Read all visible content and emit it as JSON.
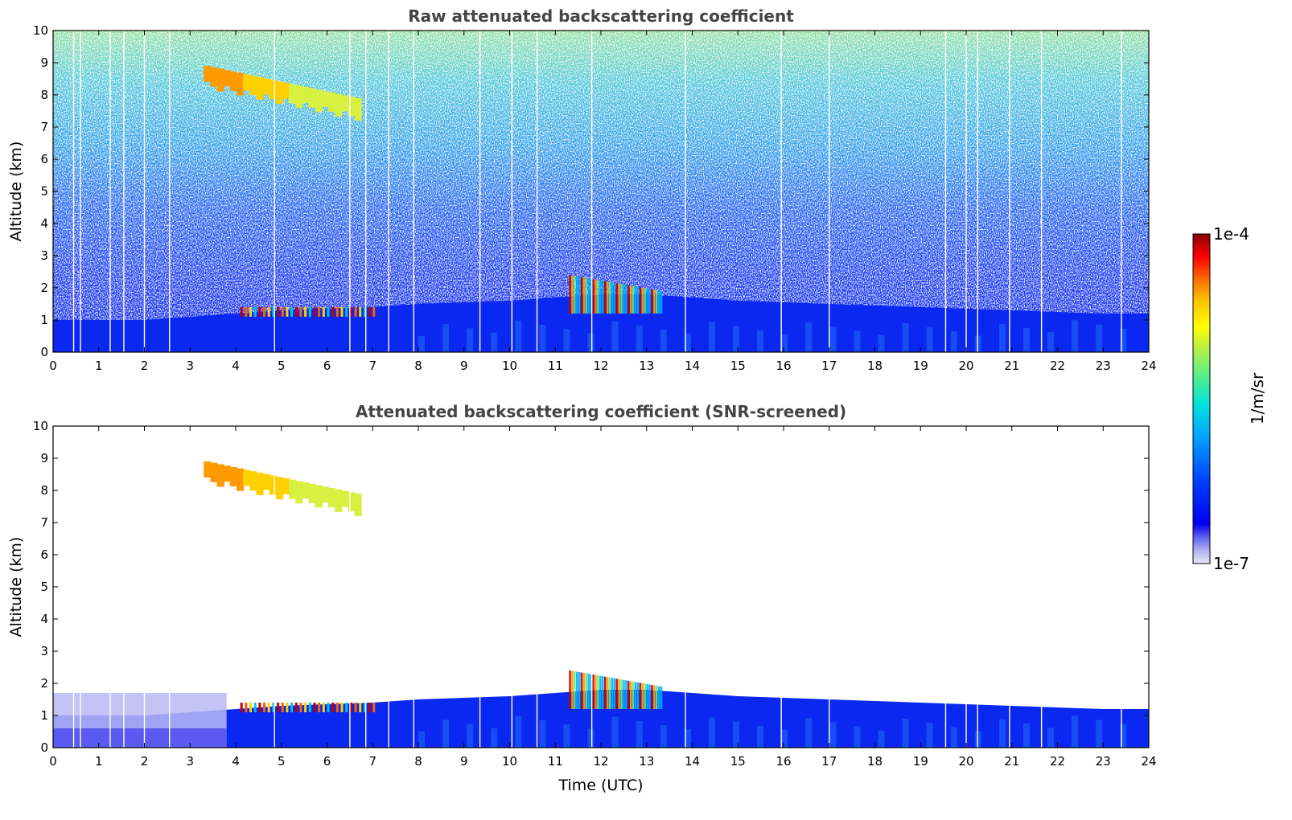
{
  "chart_data": [
    {
      "type": "heatmap",
      "title": "Raw attenuated backscattering coefficient",
      "xlabel": "",
      "ylabel": "Altitude (km)",
      "xlim": [
        0,
        24
      ],
      "ylim": [
        0,
        10
      ],
      "xticks": [
        "0",
        "1",
        "2",
        "3",
        "4",
        "5",
        "6",
        "7",
        "8",
        "9",
        "10",
        "11",
        "12",
        "13",
        "14",
        "15",
        "16",
        "17",
        "18",
        "19",
        "20",
        "21",
        "22",
        "23",
        "24"
      ],
      "yticks": [
        "0",
        "1",
        "2",
        "3",
        "4",
        "5",
        "6",
        "7",
        "8",
        "9",
        "10"
      ],
      "layers": [
        {
          "name": "boundary-layer aerosol",
          "x_start": 0,
          "x_end": 24,
          "top_km": [
            1.0,
            1.0,
            1.0,
            1.1,
            1.2,
            1.3,
            1.35,
            1.4,
            1.5,
            1.55,
            1.6,
            1.7,
            1.8,
            1.8,
            1.7,
            1.6,
            1.55,
            1.5,
            1.45,
            1.4,
            1.35,
            1.3,
            1.25,
            1.2,
            1.2
          ]
        },
        {
          "name": "cirrus",
          "x_start": 3.3,
          "x_end": 6.6,
          "base_km": 7.6,
          "top_km": 8.9
        },
        {
          "name": "low cloud",
          "x_start": 4.1,
          "x_end": 7.0,
          "base_km": 1.1,
          "top_km": 1.4
        },
        {
          "name": "cloud",
          "x_start": 11.3,
          "x_end": 13.3,
          "base_km": 1.6,
          "top_km": 2.4
        }
      ],
      "noise": "high above boundary layer, increasing with altitude",
      "data_gaps_utc": [
        0.45,
        0.6,
        1.25,
        1.55,
        2.0,
        2.55,
        4.85,
        6.5,
        6.85,
        7.35,
        7.9,
        9.35,
        10.05,
        10.6,
        11.8,
        13.85,
        15.95,
        17.0,
        19.55,
        20.0,
        20.25,
        20.95,
        21.65,
        23.4
      ]
    },
    {
      "type": "heatmap",
      "title": "Attenuated backscattering coefficient (SNR-screened)",
      "xlabel": "Time (UTC)",
      "ylabel": "Altitude (km)",
      "xlim": [
        0,
        24
      ],
      "ylim": [
        0,
        10
      ],
      "xticks": [
        "0",
        "1",
        "2",
        "3",
        "4",
        "5",
        "6",
        "7",
        "8",
        "9",
        "10",
        "11",
        "12",
        "13",
        "14",
        "15",
        "16",
        "17",
        "18",
        "19",
        "20",
        "21",
        "22",
        "23",
        "24"
      ],
      "yticks": [
        "0",
        "1",
        "2",
        "3",
        "4",
        "5",
        "6",
        "7",
        "8",
        "9",
        "10"
      ],
      "noise": "removed"
    }
  ],
  "colorbar": {
    "min_label": "1e-7",
    "max_label": "1e-4",
    "unit": "1/m/sr",
    "scale": "log",
    "colormap": [
      "#e8e8f8",
      "#b0b0f0",
      "#6060f0",
      "#0000f0",
      "#0040ff",
      "#00a0ff",
      "#00e0e0",
      "#60f080",
      "#c0f040",
      "#ffff00",
      "#ffc000",
      "#ff6000",
      "#ff0000",
      "#c00000",
      "#800000"
    ]
  }
}
